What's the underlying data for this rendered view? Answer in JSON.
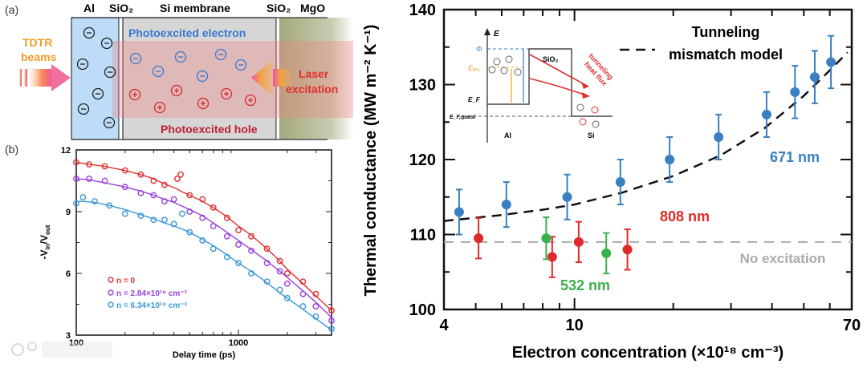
{
  "panel_a": {
    "label": "(a)",
    "layers": [
      "Al",
      "SiO₂",
      "Si membrane",
      "SiO₂",
      "MgO"
    ],
    "tdtr_line1": "TDTR",
    "tdtr_line2": "beams",
    "laser_line1": "Laser",
    "laser_line2": "excitation",
    "electron_label": "Photoexcited electron",
    "hole_label": "Photoexcited hole",
    "colors": {
      "al": "#bcdcf7",
      "si": "#d6d6d6",
      "mgo": "#a9ad83",
      "excitation": "#f2a0a0",
      "electron": "#3a78d0",
      "hole": "#d62a2a",
      "tdtr": "#f39a2a"
    }
  },
  "inset": {
    "energy_axis": "E",
    "phi": "Φ",
    "e_exc": "Eₑₓ꜀",
    "e_f": "E_F",
    "e_f_quasi": "E_F,quasi",
    "barrier": "SiO₂",
    "left": "Al",
    "right": "Si",
    "flux_label_1": "tunneling",
    "flux_label_2": "heat flux"
  },
  "chart_data": [
    {
      "type": "scatter",
      "panel_label": "(b)",
      "xlabel": "Delay time (ps)",
      "ylabel_parts": [
        "-V",
        "in",
        "/V",
        "out"
      ],
      "xscale": "log",
      "xlim": [
        100,
        3750
      ],
      "ylim": [
        3,
        12
      ],
      "xticks": [
        "100",
        "1000"
      ],
      "yticks": [
        "3",
        "6",
        "9",
        "12"
      ],
      "grid": false,
      "legend_placement": "lower-left",
      "series": [
        {
          "name": "n = 0",
          "color": "#e03030",
          "x": [
            100,
            120,
            150,
            200,
            250,
            300,
            350,
            420,
            440,
            500,
            600,
            700,
            850,
            1000,
            1200,
            1500,
            1800,
            2000,
            2500,
            3000,
            3750
          ],
          "y": [
            11.4,
            11.3,
            11.2,
            11.0,
            10.8,
            10.5,
            10.3,
            10.6,
            10.8,
            9.8,
            9.6,
            9.2,
            8.7,
            8.1,
            7.8,
            7.2,
            6.6,
            6.0,
            5.6,
            5.0,
            4.2
          ],
          "fit": [
            11.4,
            11.3,
            11.2,
            11.0,
            10.8,
            10.6,
            10.35,
            10.1,
            10.0,
            9.8,
            9.5,
            9.2,
            8.75,
            8.3,
            7.85,
            7.2,
            6.6,
            6.2,
            5.5,
            4.9,
            4.2
          ]
        },
        {
          "name": "n = 2.84×10¹⁹ cm⁻³",
          "color": "#9a40e0",
          "x": [
            100,
            120,
            150,
            200,
            250,
            300,
            350,
            400,
            500,
            600,
            700,
            850,
            1000,
            1200,
            1500,
            1800,
            2000,
            2500,
            3000,
            3750
          ],
          "y": [
            10.6,
            10.6,
            10.5,
            10.2,
            9.9,
            9.8,
            9.5,
            9.6,
            9.0,
            8.7,
            8.3,
            7.8,
            7.4,
            7.1,
            6.5,
            6.1,
            5.5,
            5.0,
            4.4,
            3.7
          ],
          "fit": [
            10.6,
            10.55,
            10.4,
            10.2,
            10.0,
            9.8,
            9.6,
            9.45,
            9.1,
            8.8,
            8.45,
            8.0,
            7.6,
            7.15,
            6.6,
            6.1,
            5.8,
            5.15,
            4.6,
            3.85
          ]
        },
        {
          "name": "n = 6.34×10¹⁹ cm⁻³",
          "color": "#3a98d8",
          "x": [
            100,
            110,
            130,
            160,
            200,
            250,
            300,
            350,
            400,
            450,
            500,
            600,
            700,
            850,
            1000,
            1200,
            1500,
            1800,
            2000,
            2500,
            3000,
            3750
          ],
          "y": [
            9.4,
            9.7,
            9.5,
            9.3,
            8.9,
            8.8,
            8.6,
            8.6,
            8.4,
            8.9,
            8.0,
            7.6,
            7.2,
            6.8,
            6.5,
            6.0,
            5.6,
            5.2,
            4.8,
            4.4,
            3.9,
            3.3
          ],
          "fit": [
            9.5,
            9.5,
            9.45,
            9.3,
            9.1,
            8.85,
            8.65,
            8.45,
            8.3,
            8.15,
            8.0,
            7.65,
            7.35,
            6.9,
            6.5,
            6.1,
            5.55,
            5.05,
            4.8,
            4.25,
            3.8,
            3.25
          ]
        }
      ]
    },
    {
      "type": "scatter",
      "xlabel": "Electron concentration (×10¹⁸ cm⁻³)",
      "ylabel": "Thermal conductance (MW m⁻² K⁻¹)",
      "xscale": "log",
      "xlim": [
        4,
        70
      ],
      "ylim": [
        100,
        140
      ],
      "xticks": [
        "4",
        "10",
        "70"
      ],
      "yticks": [
        "100",
        "110",
        "120",
        "130",
        "140"
      ],
      "grid": false,
      "series": [
        {
          "name": "671 nm",
          "color": "#3a7fc0",
          "x": [
            4.45,
            6.2,
            9.5,
            13.8,
            19.5,
            27.5,
            38.5,
            47,
            54,
            60.5
          ],
          "y": [
            113,
            114,
            115,
            117,
            120,
            123,
            126,
            129,
            131,
            133
          ],
          "err": [
            3,
            3,
            3,
            3,
            3,
            3,
            3,
            3.5,
            3.5,
            3.5
          ]
        },
        {
          "name": "808 nm",
          "color": "#e02a2a",
          "x": [
            5.1,
            8.55,
            10.3,
            14.5
          ],
          "y": [
            109.5,
            107,
            109,
            108
          ],
          "err": [
            2.7,
            2.7,
            2.7,
            2.7
          ]
        },
        {
          "name": "532 nm",
          "color": "#3ab04a",
          "x": [
            8.2,
            12.5
          ],
          "y": [
            109.5,
            107.5
          ],
          "err": [
            2.8,
            2.7
          ]
        }
      ],
      "model": {
        "name": "Tunneling mismatch model",
        "name_line1": "Tunneling",
        "name_line2": "mismatch model",
        "color": "#111111",
        "x": [
          4,
          6,
          8,
          10,
          14,
          20,
          28,
          38,
          50,
          60,
          68
        ],
        "y": [
          111.8,
          112.6,
          113.3,
          114.0,
          115.6,
          117.8,
          120.6,
          124.2,
          128.5,
          131.9,
          134.3
        ]
      },
      "baseline": {
        "name": "No excitation",
        "y": 109,
        "color": "#aaaaaa"
      }
    }
  ]
}
